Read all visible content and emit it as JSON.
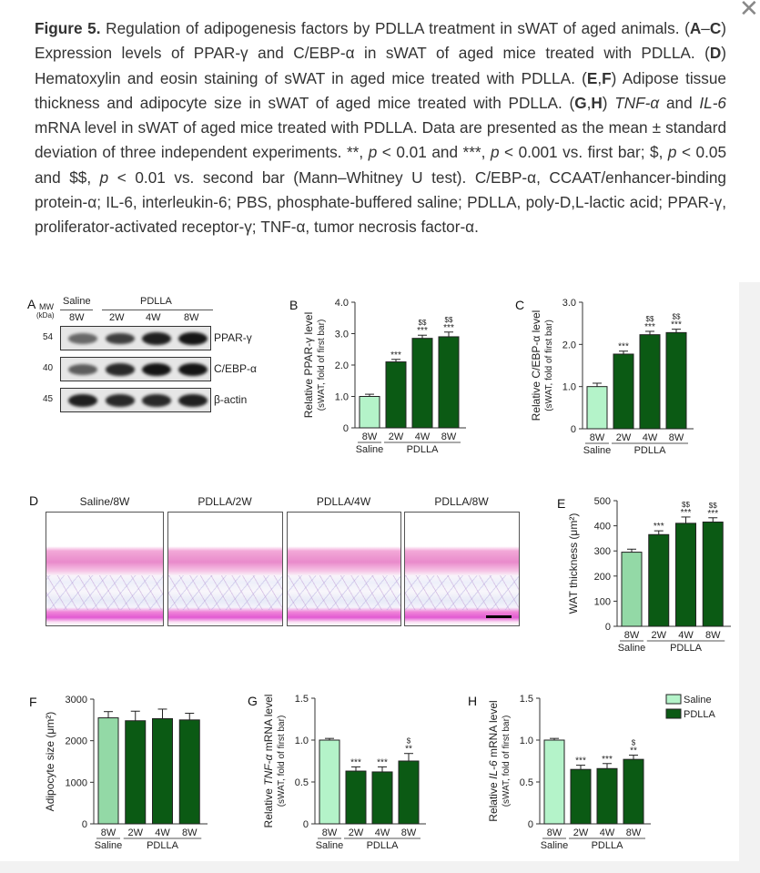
{
  "close_icon": "close-x-icon",
  "caption": [
    {
      "t": "Figure 5.",
      "b": true
    },
    {
      "t": " Regulation of adipogenesis factors by PDLLA treatment in sWAT of aged animals. ("
    },
    {
      "t": "A",
      "b": true
    },
    {
      "t": "–"
    },
    {
      "t": "C",
      "b": true
    },
    {
      "t": ") Expression levels of PPAR-γ and C/EBP-α in sWAT of aged mice treated with PDLLA. ("
    },
    {
      "t": "D",
      "b": true
    },
    {
      "t": ") Hematoxylin and eosin staining of sWAT in aged mice treated with PDLLA. ("
    },
    {
      "t": "E",
      "b": true
    },
    {
      "t": ","
    },
    {
      "t": "F",
      "b": true
    },
    {
      "t": ") Adipose tissue thickness and adipocyte size in sWAT of aged mice treated with PDLLA. ("
    },
    {
      "t": "G",
      "b": true
    },
    {
      "t": ","
    },
    {
      "t": "H",
      "b": true
    },
    {
      "t": ") "
    },
    {
      "t": "TNF-α",
      "i": true
    },
    {
      "t": " and "
    },
    {
      "t": "IL-6",
      "i": true
    },
    {
      "t": " mRNA level in sWAT of aged mice treated with PDLLA. Data are presented as the mean ± standard deviation of three independent experiments. **, "
    },
    {
      "t": "p",
      "i": true
    },
    {
      "t": " < 0.01 and ***, "
    },
    {
      "t": "p",
      "i": true
    },
    {
      "t": " < 0.001 vs. first bar; $, "
    },
    {
      "t": "p",
      "i": true
    },
    {
      "t": " < 0.05 and $$, "
    },
    {
      "t": "p",
      "i": true
    },
    {
      "t": " < 0.01 vs. second bar (Mann–Whitney U test). C/EBP-α, CCAAT/enhancer-binding protein-α; IL-6, interleukin-6; PBS, phosphate-buffered saline; PDLLA, poly-D,L-lactic acid; PPAR-γ, proliferator-activated receptor-γ; TNF-α, tumor necrosis factor-α."
    }
  ],
  "blot": {
    "letter": "A",
    "mw_label": "MW",
    "kda_label": "(kDa)",
    "group_saline": "Saline",
    "group_pdlla": "PDLLA",
    "lanes": [
      "8W",
      "2W",
      "4W",
      "8W"
    ],
    "rows": [
      {
        "mw": "54",
        "name": "PPAR-γ",
        "intensity": [
          0.6,
          0.8,
          0.95,
          1.0
        ]
      },
      {
        "mw": "40",
        "name": "C/EBP-α",
        "intensity": [
          0.65,
          0.9,
          1.0,
          1.0
        ]
      },
      {
        "mw": "45",
        "name": "β-actin",
        "intensity": [
          0.95,
          0.9,
          0.9,
          0.95
        ]
      }
    ]
  },
  "histology": {
    "letter": "D",
    "panels": [
      "Saline/8W",
      "PDLLA/2W",
      "PDLLA/4W",
      "PDLLA/8W"
    ]
  },
  "legend": {
    "saline": "Saline",
    "pdlla": "PDLLA"
  },
  "colors": {
    "saline": "#b4f3c9",
    "saline_alt": "#93d9a6",
    "pdlla": "#0b5a14",
    "axis": "#333333"
  },
  "chart_data": [
    {
      "id": "B",
      "type": "bar",
      "letter": "B",
      "categories": [
        "8W",
        "2W",
        "4W",
        "8W"
      ],
      "groups": [
        {
          "label": "Saline",
          "span": 1
        },
        {
          "label": "PDLLA",
          "span": 3
        }
      ],
      "values": [
        1.0,
        2.1,
        2.85,
        2.9
      ],
      "errors": [
        0.07,
        0.08,
        0.1,
        0.15
      ],
      "ylim": [
        0,
        4.0
      ],
      "yticks": [
        "0",
        "1.0",
        "2.0",
        "3.0",
        "4.0"
      ],
      "ytick_values": [
        0,
        1,
        2,
        3,
        4
      ],
      "ylabel": [
        {
          "t": "Relative PPAR-γ level"
        }
      ],
      "ylabel2": "(sWAT, fold of first bar)",
      "stars": [
        "",
        "***",
        "***",
        "***"
      ],
      "dollars": [
        "",
        "",
        "$$",
        "$$"
      ],
      "saline_color": "saline"
    },
    {
      "id": "C",
      "type": "bar",
      "letter": "C",
      "categories": [
        "8W",
        "2W",
        "4W",
        "8W"
      ],
      "groups": [
        {
          "label": "Saline",
          "span": 1
        },
        {
          "label": "PDLLA",
          "span": 3
        }
      ],
      "values": [
        1.0,
        1.77,
        2.23,
        2.28
      ],
      "errors": [
        0.08,
        0.07,
        0.08,
        0.08
      ],
      "ylim": [
        0,
        3.0
      ],
      "yticks": [
        "0",
        "1.0",
        "2.0",
        "3.0"
      ],
      "ytick_values": [
        0,
        1,
        2,
        3
      ],
      "ylabel": [
        {
          "t": "Relative C/EBP-α level"
        }
      ],
      "ylabel2": "(sWAT, fold of first bar)",
      "stars": [
        "",
        "***",
        "***",
        "***"
      ],
      "dollars": [
        "",
        "",
        "$$",
        "$$"
      ],
      "saline_color": "saline"
    },
    {
      "id": "E",
      "type": "bar",
      "letter": "E",
      "categories": [
        "8W",
        "2W",
        "4W",
        "8W"
      ],
      "groups": [
        {
          "label": "Saline",
          "span": 1
        },
        {
          "label": "PDLLA",
          "span": 3
        }
      ],
      "values": [
        295,
        365,
        410,
        415
      ],
      "errors": [
        12,
        15,
        25,
        17
      ],
      "ylim": [
        0,
        500
      ],
      "yticks": [
        "0",
        "100",
        "200",
        "300",
        "400",
        "500"
      ],
      "ytick_values": [
        0,
        100,
        200,
        300,
        400,
        500
      ],
      "ylabel": [
        {
          "t": "WAT thickness (μm²)"
        }
      ],
      "ylabel2": "",
      "stars": [
        "",
        "***",
        "***",
        "***"
      ],
      "dollars": [
        "",
        "",
        "$$",
        "$$"
      ],
      "saline_color": "saline_alt"
    },
    {
      "id": "F",
      "type": "bar",
      "letter": "F",
      "categories": [
        "8W",
        "2W",
        "4W",
        "8W"
      ],
      "groups": [
        {
          "label": "Saline",
          "span": 1
        },
        {
          "label": "PDLLA",
          "span": 3
        }
      ],
      "values": [
        2550,
        2480,
        2530,
        2500
      ],
      "errors": [
        150,
        230,
        230,
        160
      ],
      "ylim": [
        0,
        3000
      ],
      "yticks": [
        "0",
        "1000",
        "2000",
        "3000"
      ],
      "ytick_values": [
        0,
        1000,
        2000,
        3000
      ],
      "ylabel": [
        {
          "t": "Adipocyte size (μm²)"
        }
      ],
      "ylabel2": "",
      "stars": [
        "",
        "",
        "",
        ""
      ],
      "dollars": [
        "",
        "",
        "",
        ""
      ],
      "saline_color": "saline_alt"
    },
    {
      "id": "G",
      "type": "bar",
      "letter": "G",
      "categories": [
        "8W",
        "2W",
        "4W",
        "8W"
      ],
      "groups": [
        {
          "label": "Saline",
          "span": 1
        },
        {
          "label": "PDLLA",
          "span": 3
        }
      ],
      "values": [
        1.0,
        0.63,
        0.62,
        0.75
      ],
      "errors": [
        0.02,
        0.05,
        0.06,
        0.09
      ],
      "ylim": [
        0,
        1.5
      ],
      "yticks": [
        "0",
        "0.5",
        "1.0",
        "1.5"
      ],
      "ytick_values": [
        0,
        0.5,
        1.0,
        1.5
      ],
      "ylabel": [
        {
          "t": "Relative "
        },
        {
          "t": "TNF-α",
          "i": true
        },
        {
          "t": " mRNA level"
        }
      ],
      "ylabel2": "(sWAT, fold of first bar)",
      "stars": [
        "",
        "***",
        "***",
        "**"
      ],
      "dollars": [
        "",
        "",
        "",
        "$"
      ],
      "saline_color": "saline"
    },
    {
      "id": "H",
      "type": "bar",
      "letter": "H",
      "categories": [
        "8W",
        "2W",
        "4W",
        "8W"
      ],
      "groups": [
        {
          "label": "Saline",
          "span": 1
        },
        {
          "label": "PDLLA",
          "span": 3
        }
      ],
      "values": [
        1.0,
        0.65,
        0.66,
        0.77
      ],
      "errors": [
        0.02,
        0.05,
        0.06,
        0.05
      ],
      "ylim": [
        0,
        1.5
      ],
      "yticks": [
        "0",
        "0.5",
        "1.0",
        "1.5"
      ],
      "ytick_values": [
        0,
        0.5,
        1.0,
        1.5
      ],
      "ylabel": [
        {
          "t": "Relative "
        },
        {
          "t": "IL-6",
          "i": true
        },
        {
          "t": " mRNA level"
        }
      ],
      "ylabel2": "(sWAT, fold of first bar)",
      "stars": [
        "",
        "***",
        "***",
        "**"
      ],
      "dollars": [
        "",
        "",
        "",
        "$"
      ],
      "saline_color": "saline"
    }
  ]
}
